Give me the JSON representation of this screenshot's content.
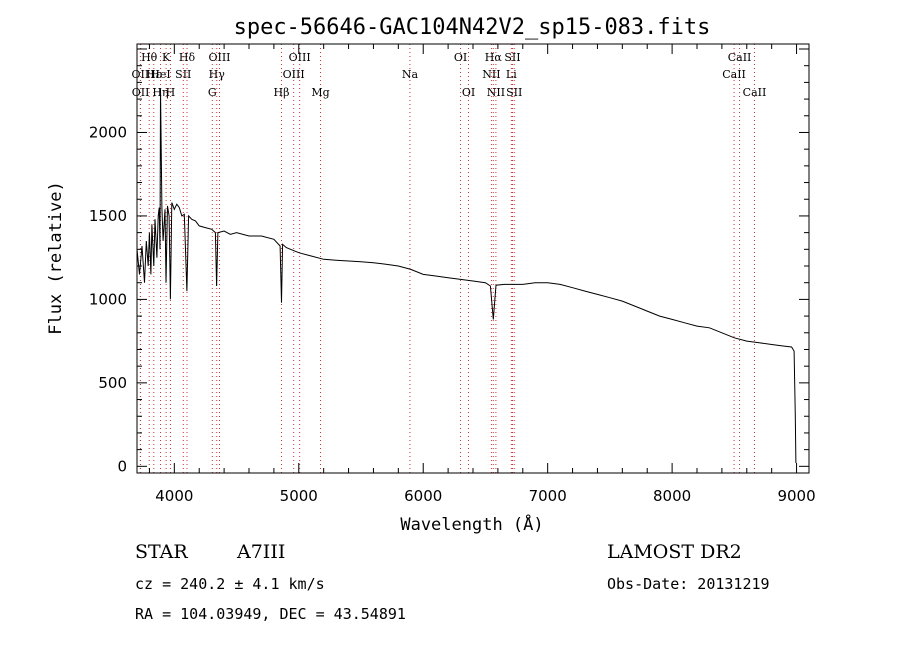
{
  "chart_data": {
    "type": "line",
    "title": "spec-56646-GAC104N42V2_sp15-083.fits",
    "xlabel": "Wavelength (Å)",
    "ylabel": "Flux (relative)",
    "xlim": [
      3700,
      9100
    ],
    "ylim": [
      -40,
      2530
    ],
    "xticks": [
      4000,
      5000,
      6000,
      7000,
      8000,
      9000
    ],
    "yticks": [
      0,
      500,
      1000,
      1500,
      2000
    ],
    "grid": false,
    "series": [
      {
        "x": [
          3700,
          3720,
          3740,
          3760,
          3775,
          3790,
          3800,
          3812,
          3820,
          3835,
          3845,
          3860,
          3870,
          3878,
          3885,
          3889,
          3900,
          3910,
          3925,
          3933,
          3945,
          3958,
          3968,
          3980,
          4000,
          4020,
          4040,
          4060,
          4080,
          4101,
          4115,
          4140,
          4170,
          4200,
          4250,
          4300,
          4330,
          4340,
          4350,
          4400,
          4450,
          4500,
          4600,
          4700,
          4800,
          4850,
          4861,
          4870,
          4900,
          5000,
          5100,
          5200,
          5300,
          5400,
          5500,
          5600,
          5700,
          5800,
          5900,
          6000,
          6100,
          6200,
          6300,
          6400,
          6500,
          6540,
          6563,
          6585,
          6650,
          6700,
          6800,
          6900,
          7000,
          7100,
          7200,
          7300,
          7400,
          7500,
          7600,
          7700,
          7800,
          7900,
          8000,
          8100,
          8200,
          8300,
          8400,
          8500,
          8600,
          8700,
          8800,
          8900,
          8960,
          8980,
          8990,
          8995
        ],
        "y": [
          1300,
          1150,
          1320,
          1100,
          1350,
          1200,
          1400,
          1150,
          1450,
          1200,
          1480,
          1250,
          1500,
          1550,
          1300,
          2260,
          1550,
          1350,
          1540,
          1100,
          1560,
          1500,
          1000,
          1580,
          1540,
          1570,
          1550,
          1500,
          1510,
          1050,
          1500,
          1480,
          1470,
          1440,
          1430,
          1420,
          1400,
          1080,
          1400,
          1410,
          1390,
          1400,
          1380,
          1380,
          1360,
          1320,
          980,
          1330,
          1310,
          1280,
          1260,
          1240,
          1235,
          1230,
          1225,
          1220,
          1210,
          1200,
          1180,
          1150,
          1140,
          1130,
          1120,
          1110,
          1100,
          1080,
          880,
          1085,
          1090,
          1090,
          1090,
          1100,
          1100,
          1090,
          1070,
          1050,
          1030,
          1010,
          990,
          960,
          930,
          900,
          880,
          860,
          840,
          830,
          800,
          770,
          750,
          740,
          730,
          720,
          715,
          690,
          300,
          20
        ]
      }
    ],
    "spectral_lines": [
      {
        "label": "Hθ",
        "x": 3798,
        "row": 0
      },
      {
        "label": "OII",
        "x": 3727,
        "row": 1
      },
      {
        "label": "OII",
        "x": 3729,
        "row": 2
      },
      {
        "label": "Hε",
        "x": 3835,
        "row": 1
      },
      {
        "label": "Hη",
        "x": 3889,
        "row": 2
      },
      {
        "label": "K",
        "x": 3934,
        "row": 0
      },
      {
        "label": "HeI",
        "x": 3889,
        "row": 1
      },
      {
        "label": "SII",
        "x": 4072,
        "row": 1
      },
      {
        "label": "H",
        "x": 3969,
        "row": 2
      },
      {
        "label": "Hδ",
        "x": 4102,
        "row": 0
      },
      {
        "label": "OIII",
        "x": 4363,
        "row": 0
      },
      {
        "label": "Hγ",
        "x": 4341,
        "row": 1
      },
      {
        "label": "G",
        "x": 4305,
        "row": 2
      },
      {
        "label": "Hβ",
        "x": 4861,
        "row": 2
      },
      {
        "label": "OIII",
        "x": 5007,
        "row": 0
      },
      {
        "label": "OIII",
        "x": 4959,
        "row": 1
      },
      {
        "label": "Mg",
        "x": 5175,
        "row": 2
      },
      {
        "label": "Na",
        "x": 5893,
        "row": 1
      },
      {
        "label": "OI",
        "x": 6300,
        "row": 0
      },
      {
        "label": "OI",
        "x": 6364,
        "row": 2
      },
      {
        "label": "Hα",
        "x": 6563,
        "row": 0
      },
      {
        "label": "SII",
        "x": 6717,
        "row": 0
      },
      {
        "label": "NII",
        "x": 6548,
        "row": 1
      },
      {
        "label": "Li",
        "x": 6708,
        "row": 1
      },
      {
        "label": "NII",
        "x": 6584,
        "row": 2
      },
      {
        "label": "SII",
        "x": 6731,
        "row": 2
      },
      {
        "label": "CaII",
        "x": 8542,
        "row": 0
      },
      {
        "label": "CaII",
        "x": 8498,
        "row": 1
      },
      {
        "label": "CaII",
        "x": 8662,
        "row": 2
      }
    ]
  },
  "info": {
    "object_class": "STAR",
    "subclass": "A7III",
    "survey": "LAMOST DR2",
    "cz": "cz = 240.2 ± 4.1 km/s",
    "obs_date": "Obs-Date: 20131219",
    "coords": "RA = 104.03949, DEC =  43.54891"
  }
}
